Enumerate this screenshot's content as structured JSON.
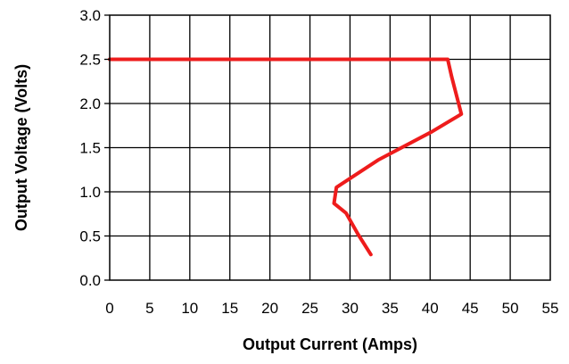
{
  "chart_data": {
    "type": "line",
    "title": "",
    "xlabel": "Output Current (Amps)",
    "ylabel": "Output Voltage (Volts)",
    "xlim": [
      0,
      55
    ],
    "ylim": [
      0,
      3.0
    ],
    "x_ticks": [
      0,
      5,
      10,
      15,
      20,
      25,
      30,
      35,
      40,
      45,
      50,
      55
    ],
    "y_ticks": [
      0.0,
      0.5,
      1.0,
      1.5,
      2.0,
      2.5,
      3.0
    ],
    "x_tick_labels": [
      "0",
      "5",
      "10",
      "15",
      "20",
      "25",
      "30",
      "35",
      "40",
      "45",
      "50",
      "55"
    ],
    "y_tick_labels": [
      "0.0",
      "0.5",
      "1.0",
      "1.5",
      "2.0",
      "2.5",
      "3.0"
    ],
    "grid": true,
    "legend": "none",
    "series": [
      {
        "color": "#ee1c1c",
        "points": [
          [
            0,
            2.5
          ],
          [
            42.2,
            2.5
          ],
          [
            42.7,
            2.3
          ],
          [
            43.9,
            1.88
          ],
          [
            40.2,
            1.68
          ],
          [
            33.5,
            1.36
          ],
          [
            28.8,
            1.08
          ],
          [
            28.3,
            1.05
          ],
          [
            28.0,
            0.87
          ],
          [
            29.5,
            0.76
          ],
          [
            31.0,
            0.52
          ],
          [
            32.6,
            0.29
          ]
        ]
      }
    ]
  }
}
